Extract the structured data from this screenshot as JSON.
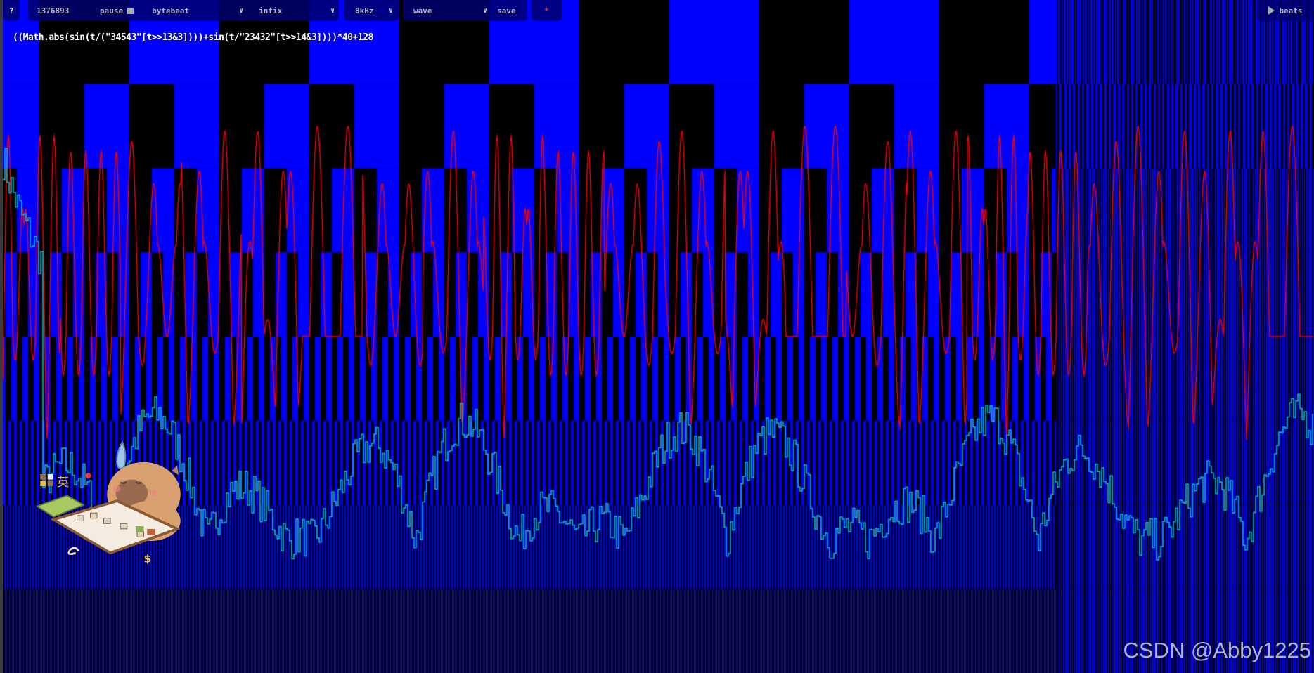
{
  "toolbar": {
    "help_label": "?",
    "counter": "1376893",
    "pause_label": "pause",
    "mode_select": "bytebeat",
    "syntax_select": "infix",
    "rate_select": "8kHz",
    "view_select": "wave",
    "save_label": "save",
    "star_label": "*",
    "beats_label": "beats",
    "play_icon": "play-triangle-icon"
  },
  "formula": "((Math.abs(sin(t/(\"34543\"[t>>13&3])))+sin(t/\"23432\"[t>>14&3])))*40+128",
  "watermark": "CSDN @Abby1225",
  "colors": {
    "bit_on": "#0000ff",
    "bit_off": "#000000",
    "waveform": "#ff0000",
    "spectrum": "#00c0d0",
    "toolbar_bg": "#00006e",
    "toolbar_text": "#b8b8b8",
    "star": "#ff2020"
  }
}
